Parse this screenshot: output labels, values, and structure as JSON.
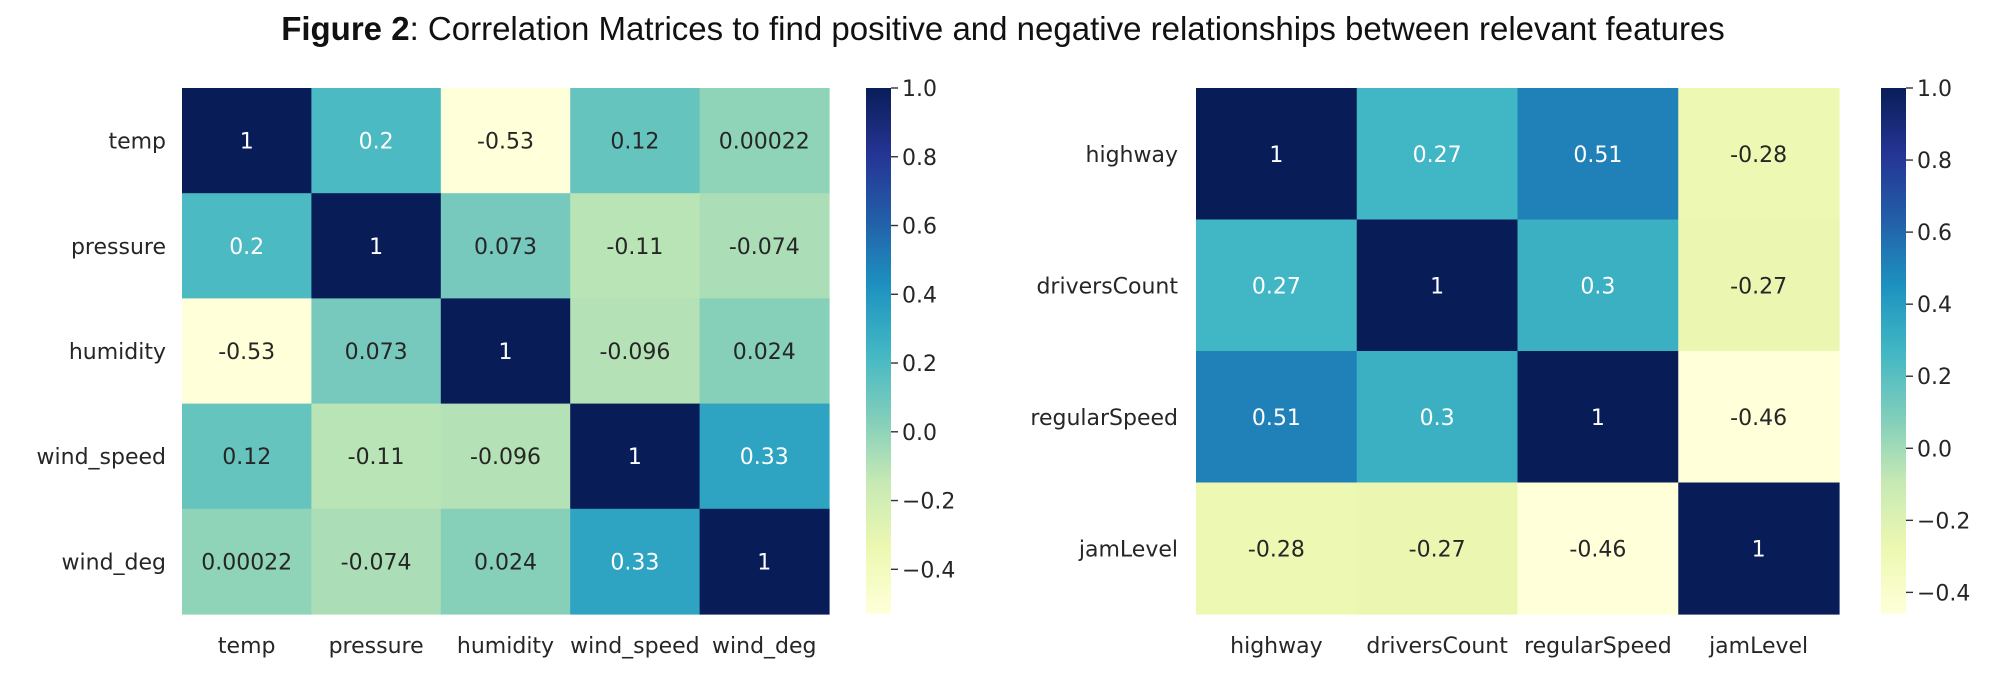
{
  "figure": {
    "label": "Figure 2",
    "caption": ": Correlation Matrices to find positive and negative relationships between relevant features"
  },
  "colors": {
    "scale": [
      "#ffffd9",
      "#edf8b1",
      "#c7e9b4",
      "#7fcdbb",
      "#41b6c4",
      "#1d91c0",
      "#225ea8",
      "#253494",
      "#081d58"
    ],
    "dark_text": "#262626",
    "light_text": "#ffffff"
  },
  "chart_data": [
    {
      "type": "heatmap",
      "title": "",
      "rows": [
        "temp",
        "pressure",
        "humidity",
        "wind_speed",
        "wind_deg"
      ],
      "columns": [
        "temp",
        "pressure",
        "humidity",
        "wind_speed",
        "wind_deg"
      ],
      "values": [
        [
          1,
          0.2,
          -0.53,
          0.12,
          0.00022
        ],
        [
          0.2,
          1,
          0.073,
          -0.11,
          -0.074
        ],
        [
          -0.53,
          0.073,
          1,
          -0.096,
          0.024
        ],
        [
          0.12,
          -0.11,
          -0.096,
          1,
          0.33
        ],
        [
          0.00022,
          -0.074,
          0.024,
          0.33,
          1
        ]
      ],
      "annotations": [
        [
          "1",
          "0.2",
          "-0.53",
          "0.12",
          "0.00022"
        ],
        [
          "0.2",
          "1",
          "0.073",
          "-0.11",
          "-0.074"
        ],
        [
          "-0.53",
          "0.073",
          "1",
          "-0.096",
          "0.024"
        ],
        [
          "0.12",
          "-0.11",
          "-0.096",
          "1",
          "0.33"
        ],
        [
          "0.00022",
          "-0.074",
          "0.024",
          "0.33",
          "1"
        ]
      ],
      "vmin": -0.53,
      "vmax": 1.0,
      "colorbar_ticks": [
        1.0,
        0.8,
        0.6,
        0.4,
        0.2,
        0.0,
        -0.2,
        -0.4
      ],
      "colorbar_tick_labels": [
        "1.0",
        "0.8",
        "0.6",
        "0.4",
        "0.2",
        "0.0",
        "−0.2",
        "−0.4"
      ],
      "colormap": "YlGnBu"
    },
    {
      "type": "heatmap",
      "title": "",
      "rows": [
        "highway",
        "driversCount",
        "regularSpeed",
        "jamLevel"
      ],
      "columns": [
        "highway",
        "driversCount",
        "regularSpeed",
        "jamLevel"
      ],
      "values": [
        [
          1,
          0.27,
          0.51,
          -0.28
        ],
        [
          0.27,
          1,
          0.3,
          -0.27
        ],
        [
          0.51,
          0.3,
          1,
          -0.46
        ],
        [
          -0.28,
          -0.27,
          -0.46,
          1
        ]
      ],
      "annotations": [
        [
          "1",
          "0.27",
          "0.51",
          "-0.28"
        ],
        [
          "0.27",
          "1",
          "0.3",
          "-0.27"
        ],
        [
          "0.51",
          "0.3",
          "1",
          "-0.46"
        ],
        [
          "-0.28",
          "-0.27",
          "-0.46",
          "1"
        ]
      ],
      "vmin": -0.46,
      "vmax": 1.0,
      "colorbar_ticks": [
        1.0,
        0.8,
        0.6,
        0.4,
        0.2,
        0.0,
        -0.2,
        -0.4
      ],
      "colorbar_tick_labels": [
        "1.0",
        "0.8",
        "0.6",
        "0.4",
        "0.2",
        "0.0",
        "−0.2",
        "−0.4"
      ],
      "colormap": "YlGnBu"
    }
  ]
}
